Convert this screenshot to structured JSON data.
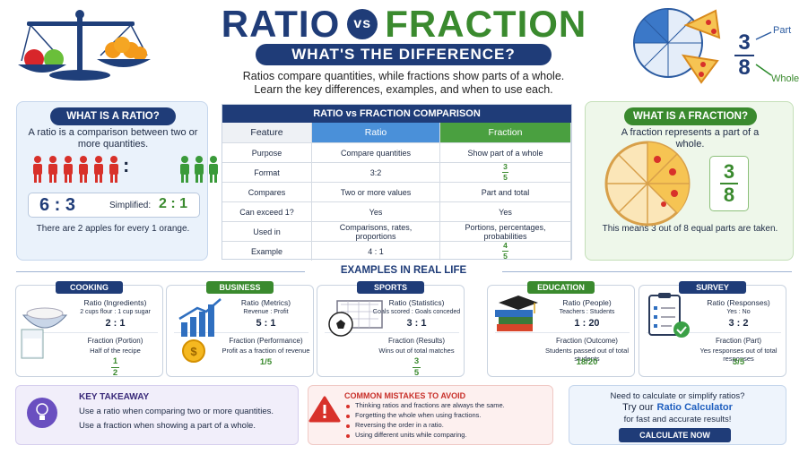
{
  "header": {
    "title_ratio": "RATIO",
    "vs": "vs",
    "title_fraction": "FRACTION",
    "subtitle": "WHAT'S THE DIFFERENCE?",
    "intro": [
      "Ratios compare quantities, while fractions show parts of a whole.",
      "Learn the key differences, examples, and when to use each."
    ]
  },
  "top_fraction": {
    "numerator": "3",
    "denominator": "8",
    "part_label": "Part",
    "whole_label": "Whole"
  },
  "ratio_panel": {
    "title": "WHAT IS A RATIO?",
    "description": "A ratio is a comparison between two or more quantities.",
    "colon": ":",
    "ratio": "6 : 3",
    "simplified_label": "Simplified:",
    "simplified": "2 : 1",
    "note": "There are 2 apples for every 1 orange."
  },
  "comparison_table": {
    "title": "RATIO vs FRACTION COMPARISON",
    "header": [
      "Feature",
      "Ratio",
      "Fraction"
    ],
    "rows": [
      [
        "Purpose",
        "Compare quantities",
        "Show part of a whole"
      ],
      [
        "Format",
        "3:2",
        {
          "numerator": "3",
          "denominator": "5"
        }
      ],
      [
        "Compares",
        "Two or more values",
        "Part and total"
      ],
      [
        "Can exceed 1?",
        "Yes",
        "Yes"
      ],
      [
        "Used in",
        "Comparisons, rates, proportions",
        "Portions, percentages, probabilities"
      ],
      [
        "Example",
        "4 : 1",
        {
          "numerator": "4",
          "denominator": "5"
        }
      ]
    ]
  },
  "fraction_panel": {
    "title": "WHAT IS A FRACTION?",
    "description": "A fraction represents a part of a whole.",
    "numerator": "3",
    "denominator": "8",
    "note": "This means 3 out of 8 equal parts are taken."
  },
  "examples": {
    "title": "EXAMPLES IN REAL LIFE",
    "cards": [
      {
        "title": "COOKING",
        "ratio_label": "Ratio (Ingredients)",
        "ratio_desc": "2 cups flour : 1 cup sugar",
        "ratio": "2 : 1",
        "fraction_label": "Fraction (Portion)",
        "fraction_desc": "Half of the recipe",
        "fraction": {
          "numerator": "1",
          "denominator": "2"
        }
      },
      {
        "title": "BUSINESS",
        "ratio_label": "Ratio (Metrics)",
        "ratio_desc": "Revenue : Profit",
        "ratio": "5 : 1",
        "fraction_label": "Fraction (Performance)",
        "fraction_desc": "Profit as a fraction of revenue",
        "fraction": "1/5"
      },
      {
        "title": "SPORTS",
        "ratio_label": "Ratio (Statistics)",
        "ratio_desc": "Goals scored : Goals conceded",
        "ratio": "3 : 1",
        "fraction_label": "Fraction (Results)",
        "fraction_desc": "Wins out of total matches",
        "fraction": {
          "numerator": "3",
          "denominator": "5"
        }
      },
      {
        "title": "EDUCATION",
        "ratio_label": "Ratio (People)",
        "ratio_desc": "Teachers : Students",
        "ratio": "1 : 20",
        "fraction_label": "Fraction (Outcome)",
        "fraction_desc": "Students passed out of total students",
        "fraction": "18/20"
      },
      {
        "title": "SURVEY",
        "ratio_label": "Ratio (Responses)",
        "ratio_desc": "Yes : No",
        "ratio": "3 : 2",
        "fraction_label": "Fraction (Part)",
        "fraction_desc": "Yes responses out of total responses",
        "fraction": "3/5"
      }
    ]
  },
  "takeaway": {
    "title": "KEY TAKEAWAY",
    "lines": [
      "Use a ratio when comparing two or more quantities.",
      "Use a fraction when showing a part of a whole."
    ]
  },
  "mistakes": {
    "title": "COMMON MISTAKES TO AVOID",
    "items": [
      "Thinking ratios and fractions are always the same.",
      "Forgetting the whole when using fractions.",
      "Reversing the order in a ratio.",
      "Using different units while comparing."
    ]
  },
  "cta": {
    "line1": "Need to calculate or simplify ratios?",
    "prefix": "Try our",
    "link": "Ratio Calculator",
    "line3": "for fast and accurate results!",
    "button": "CALCULATE NOW"
  }
}
